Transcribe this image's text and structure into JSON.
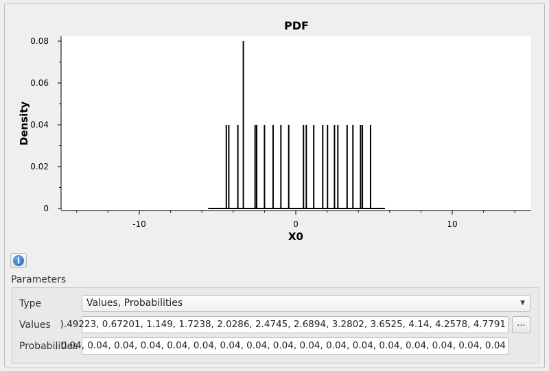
{
  "chart_data": {
    "type": "stem",
    "title": "PDF",
    "xlabel": "X0",
    "ylabel": "Density",
    "xlim": [
      -15,
      15
    ],
    "ylim": [
      0,
      0.08
    ],
    "xticks": [
      -10,
      0,
      10
    ],
    "yticks": [
      0,
      0.02,
      0.04,
      0.06,
      0.08
    ],
    "ytick_labels": [
      "0",
      "0.02",
      "0.04",
      "0.06",
      "0.08"
    ],
    "support": [
      -5.6,
      5.7
    ],
    "stems": [
      {
        "x": -4.44,
        "y": 0.04
      },
      {
        "x": -4.28,
        "y": 0.04
      },
      {
        "x": -3.7,
        "y": 0.04
      },
      {
        "x": -3.35,
        "y": 0.08
      },
      {
        "x": -2.6,
        "y": 0.04
      },
      {
        "x": -2.5,
        "y": 0.04
      },
      {
        "x": -2.0,
        "y": 0.04
      },
      {
        "x": -1.45,
        "y": 0.04
      },
      {
        "x": -0.95,
        "y": 0.04
      },
      {
        "x": -0.45,
        "y": 0.04
      },
      {
        "x": 0.49223,
        "y": 0.04
      },
      {
        "x": 0.67201,
        "y": 0.04
      },
      {
        "x": 1.149,
        "y": 0.04
      },
      {
        "x": 1.7238,
        "y": 0.04
      },
      {
        "x": 2.0286,
        "y": 0.04
      },
      {
        "x": 2.4745,
        "y": 0.04
      },
      {
        "x": 2.6894,
        "y": 0.04
      },
      {
        "x": 3.2802,
        "y": 0.04
      },
      {
        "x": 3.6525,
        "y": 0.04
      },
      {
        "x": 4.14,
        "y": 0.04
      },
      {
        "x": 4.2578,
        "y": 0.04
      },
      {
        "x": 4.7791,
        "y": 0.04
      }
    ]
  },
  "icons": {
    "info": "info-icon"
  },
  "parameters": {
    "heading": "Parameters",
    "type_label": "Type",
    "type_value": "Values, Probabilities",
    "values_label": "Values",
    "values_text": ").49223, 0.67201, 1.149, 1.7238, 2.0286, 2.4745, 2.6894, 3.2802, 3.6525, 4.14, 4.2578, 4.7791",
    "more_button_label": "...",
    "probabilities_label": "Probabilities",
    "probabilities_text": ", 0.04, 0.04, 0.04, 0.04, 0.04, 0.04, 0.04, 0.04, 0.04, 0.04, 0.04, 0.04, 0.04, 0.04, 0.04, 0.04, 0.04"
  }
}
